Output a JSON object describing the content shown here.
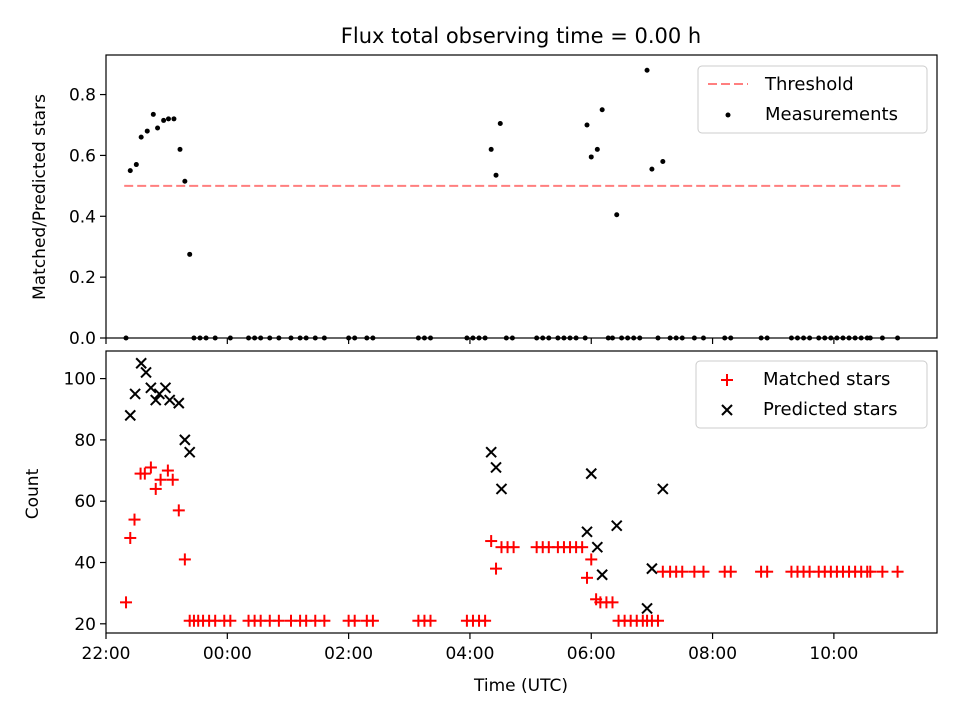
{
  "chart_data": [
    {
      "type": "scatter",
      "title": "Flux total observing time = 0.00 h",
      "xlabel": "",
      "ylabel": "Matched/Predicted stars",
      "xlim": [
        -2.0,
        11.7
      ],
      "ylim": [
        0.0,
        0.93
      ],
      "x_ticks": [
        -2,
        0,
        2,
        4,
        6,
        8,
        10
      ],
      "y_ticks": [
        0.0,
        0.2,
        0.4,
        0.6,
        0.8
      ],
      "y_tick_labels": [
        "0.0",
        "0.2",
        "0.4",
        "0.6",
        "0.8"
      ],
      "legend_position": "top-right",
      "grid": false,
      "series": [
        {
          "name": "Threshold",
          "kind": "dashed-line",
          "color": "#ff7f7f",
          "points": [
            [
              -1.7,
              0.5
            ],
            [
              11.1,
              0.5
            ]
          ]
        },
        {
          "name": "Measurements",
          "kind": "dot",
          "color": "#000000",
          "points": [
            [
              -1.67,
              0.0
            ],
            [
              -1.6,
              0.55
            ],
            [
              -1.5,
              0.57
            ],
            [
              -1.42,
              0.66
            ],
            [
              -1.32,
              0.68
            ],
            [
              -1.22,
              0.735
            ],
            [
              -1.15,
              0.69
            ],
            [
              -1.05,
              0.715
            ],
            [
              -0.97,
              0.72
            ],
            [
              -0.88,
              0.72
            ],
            [
              -0.78,
              0.62
            ],
            [
              -0.7,
              0.515
            ],
            [
              -0.62,
              0.275
            ],
            [
              -0.55,
              0.0
            ],
            [
              -0.45,
              0.0
            ],
            [
              -0.35,
              0.0
            ],
            [
              -0.2,
              0.0
            ],
            [
              0.05,
              0.0
            ],
            [
              0.35,
              0.0
            ],
            [
              0.45,
              0.0
            ],
            [
              0.55,
              0.0
            ],
            [
              0.7,
              0.0
            ],
            [
              0.85,
              0.0
            ],
            [
              1.05,
              0.0
            ],
            [
              1.2,
              0.0
            ],
            [
              1.3,
              0.0
            ],
            [
              1.45,
              0.0
            ],
            [
              1.6,
              0.0
            ],
            [
              2.0,
              0.0
            ],
            [
              2.1,
              0.0
            ],
            [
              2.3,
              0.0
            ],
            [
              2.4,
              0.0
            ],
            [
              3.15,
              0.0
            ],
            [
              3.25,
              0.0
            ],
            [
              3.35,
              0.0
            ],
            [
              3.95,
              0.0
            ],
            [
              4.05,
              0.0
            ],
            [
              4.15,
              0.0
            ],
            [
              4.25,
              0.0
            ],
            [
              4.35,
              0.62
            ],
            [
              4.43,
              0.535
            ],
            [
              4.5,
              0.705
            ],
            [
              4.6,
              0.0
            ],
            [
              4.7,
              0.0
            ],
            [
              5.1,
              0.0
            ],
            [
              5.2,
              0.0
            ],
            [
              5.3,
              0.0
            ],
            [
              5.45,
              0.0
            ],
            [
              5.55,
              0.0
            ],
            [
              5.65,
              0.0
            ],
            [
              5.75,
              0.0
            ],
            [
              5.9,
              0.0
            ],
            [
              5.93,
              0.7
            ],
            [
              6.0,
              0.595
            ],
            [
              6.1,
              0.62
            ],
            [
              6.18,
              0.75
            ],
            [
              6.28,
              0.0
            ],
            [
              6.35,
              0.0
            ],
            [
              6.42,
              0.405
            ],
            [
              6.5,
              0.0
            ],
            [
              6.6,
              0.0
            ],
            [
              6.7,
              0.0
            ],
            [
              6.8,
              0.0
            ],
            [
              6.92,
              0.88
            ],
            [
              7.0,
              0.555
            ],
            [
              7.1,
              0.0
            ],
            [
              7.18,
              0.58
            ],
            [
              7.3,
              0.0
            ],
            [
              7.4,
              0.0
            ],
            [
              7.5,
              0.0
            ],
            [
              7.7,
              0.0
            ],
            [
              7.85,
              0.0
            ],
            [
              8.2,
              0.0
            ],
            [
              8.3,
              0.0
            ],
            [
              8.8,
              0.0
            ],
            [
              8.9,
              0.0
            ],
            [
              9.3,
              0.0
            ],
            [
              9.4,
              0.0
            ],
            [
              9.5,
              0.0
            ],
            [
              9.6,
              0.0
            ],
            [
              9.75,
              0.0
            ],
            [
              9.85,
              0.0
            ],
            [
              9.95,
              0.0
            ],
            [
              10.05,
              0.0
            ],
            [
              10.15,
              0.0
            ],
            [
              10.25,
              0.0
            ],
            [
              10.35,
              0.0
            ],
            [
              10.45,
              0.0
            ],
            [
              10.55,
              0.0
            ],
            [
              10.6,
              0.0
            ],
            [
              10.8,
              0.0
            ],
            [
              11.05,
              0.0
            ]
          ]
        }
      ]
    },
    {
      "type": "scatter",
      "title": "",
      "xlabel": "Time (UTC)",
      "ylabel": "Count",
      "xlim": [
        -2.0,
        11.7
      ],
      "ylim": [
        17.0,
        109.0
      ],
      "x_ticks": [
        -2,
        0,
        2,
        4,
        6,
        8,
        10
      ],
      "x_tick_labels": [
        "22:00",
        "00:00",
        "02:00",
        "04:00",
        "06:00",
        "08:00",
        "10:00"
      ],
      "y_ticks": [
        20,
        40,
        60,
        80,
        100
      ],
      "y_tick_labels": [
        "20",
        "40",
        "60",
        "80",
        "100"
      ],
      "legend_position": "top-right",
      "grid": false,
      "series": [
        {
          "name": "Matched stars",
          "kind": "plus",
          "color": "#ff0000",
          "points": [
            [
              -1.67,
              27
            ],
            [
              -1.6,
              48
            ],
            [
              -1.53,
              54
            ],
            [
              -1.43,
              69
            ],
            [
              -1.36,
              69
            ],
            [
              -1.26,
              71
            ],
            [
              -1.18,
              64
            ],
            [
              -1.1,
              67
            ],
            [
              -0.98,
              70
            ],
            [
              -0.9,
              67
            ],
            [
              -0.8,
              57
            ],
            [
              -0.7,
              41
            ],
            [
              -0.62,
              21
            ],
            [
              -0.55,
              21
            ],
            [
              -0.48,
              21
            ],
            [
              -0.4,
              21
            ],
            [
              -0.3,
              21
            ],
            [
              -0.2,
              21
            ],
            [
              -0.05,
              21
            ],
            [
              0.05,
              21
            ],
            [
              0.35,
              21
            ],
            [
              0.45,
              21
            ],
            [
              0.55,
              21
            ],
            [
              0.7,
              21
            ],
            [
              0.85,
              21
            ],
            [
              1.05,
              21
            ],
            [
              1.2,
              21
            ],
            [
              1.3,
              21
            ],
            [
              1.45,
              21
            ],
            [
              1.6,
              21
            ],
            [
              2.0,
              21
            ],
            [
              2.1,
              21
            ],
            [
              2.3,
              21
            ],
            [
              2.4,
              21
            ],
            [
              3.15,
              21
            ],
            [
              3.25,
              21
            ],
            [
              3.35,
              21
            ],
            [
              3.95,
              21
            ],
            [
              4.05,
              21
            ],
            [
              4.15,
              21
            ],
            [
              4.25,
              21
            ],
            [
              4.35,
              47
            ],
            [
              4.43,
              38
            ],
            [
              4.52,
              45
            ],
            [
              4.62,
              45
            ],
            [
              4.72,
              45
            ],
            [
              5.1,
              45
            ],
            [
              5.2,
              45
            ],
            [
              5.3,
              45
            ],
            [
              5.45,
              45
            ],
            [
              5.55,
              45
            ],
            [
              5.65,
              45
            ],
            [
              5.75,
              45
            ],
            [
              5.85,
              45
            ],
            [
              5.93,
              35
            ],
            [
              6.0,
              41
            ],
            [
              6.08,
              28
            ],
            [
              6.15,
              27
            ],
            [
              6.25,
              27
            ],
            [
              6.35,
              27
            ],
            [
              6.45,
              21
            ],
            [
              6.55,
              21
            ],
            [
              6.65,
              21
            ],
            [
              6.75,
              21
            ],
            [
              6.85,
              21
            ],
            [
              6.92,
              21
            ],
            [
              7.0,
              21
            ],
            [
              7.1,
              21
            ],
            [
              7.18,
              37
            ],
            [
              7.3,
              37
            ],
            [
              7.4,
              37
            ],
            [
              7.5,
              37
            ],
            [
              7.7,
              37
            ],
            [
              7.85,
              37
            ],
            [
              8.2,
              37
            ],
            [
              8.3,
              37
            ],
            [
              8.8,
              37
            ],
            [
              8.9,
              37
            ],
            [
              9.3,
              37
            ],
            [
              9.4,
              37
            ],
            [
              9.5,
              37
            ],
            [
              9.6,
              37
            ],
            [
              9.75,
              37
            ],
            [
              9.85,
              37
            ],
            [
              9.95,
              37
            ],
            [
              10.05,
              37
            ],
            [
              10.15,
              37
            ],
            [
              10.25,
              37
            ],
            [
              10.35,
              37
            ],
            [
              10.45,
              37
            ],
            [
              10.55,
              37
            ],
            [
              10.6,
              37
            ],
            [
              10.8,
              37
            ],
            [
              11.05,
              37
            ]
          ]
        },
        {
          "name": "Predicted stars",
          "kind": "cross",
          "color": "#000000",
          "points": [
            [
              -1.6,
              88
            ],
            [
              -1.52,
              95
            ],
            [
              -1.42,
              105
            ],
            [
              -1.34,
              102
            ],
            [
              -1.26,
              97
            ],
            [
              -1.18,
              93
            ],
            [
              -1.12,
              95
            ],
            [
              -1.02,
              97
            ],
            [
              -0.95,
              93
            ],
            [
              -0.8,
              92
            ],
            [
              -0.7,
              80
            ],
            [
              -0.62,
              76
            ],
            [
              4.35,
              76
            ],
            [
              4.43,
              71
            ],
            [
              4.52,
              64
            ],
            [
              5.93,
              50
            ],
            [
              6.0,
              69
            ],
            [
              6.1,
              45
            ],
            [
              6.18,
              36
            ],
            [
              6.42,
              52
            ],
            [
              6.92,
              25
            ],
            [
              7.0,
              38
            ],
            [
              7.18,
              64
            ]
          ]
        }
      ]
    }
  ]
}
